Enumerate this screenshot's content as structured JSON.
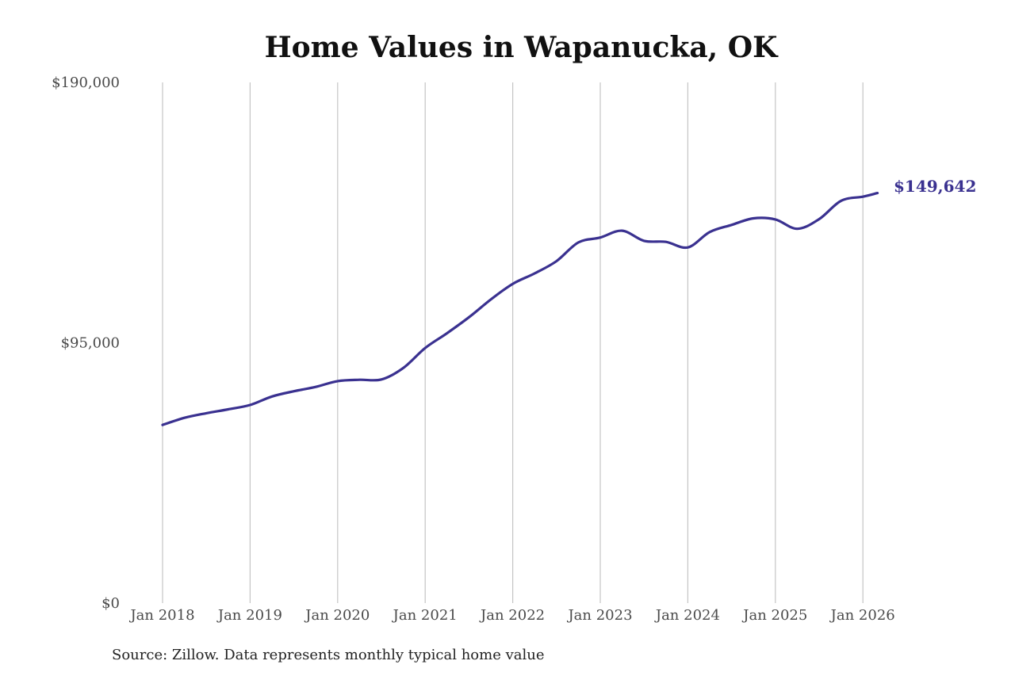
{
  "chart_data": {
    "type": "line",
    "title": "Home Values in Wapanucka, OK",
    "source": "Source: Zillow. Data represents monthly typical home value",
    "xlabel": "",
    "ylabel": "",
    "ylim": [
      0,
      190000
    ],
    "y_ticks": [
      "$0",
      "$95,000",
      "$190,000"
    ],
    "x_ticks": [
      "Jan 2018",
      "Jan 2019",
      "Jan 2020",
      "Jan 2021",
      "Jan 2022",
      "Jan 2023",
      "Jan 2024",
      "Jan 2025",
      "Jan 2026"
    ],
    "end_label": "$149,642",
    "grid": "vertical",
    "line_color": "#3a3190",
    "series": [
      {
        "x": [
          "2018-01",
          "2018-04",
          "2018-07",
          "2018-10",
          "2019-01",
          "2019-04",
          "2019-07",
          "2019-10",
          "2020-01",
          "2020-04",
          "2020-07",
          "2020-10",
          "2021-01",
          "2021-04",
          "2021-07",
          "2021-10",
          "2022-01",
          "2022-04",
          "2022-07",
          "2022-10",
          "2023-01",
          "2023-04",
          "2023-07",
          "2023-10",
          "2024-01",
          "2024-04",
          "2024-07",
          "2024-10",
          "2025-01",
          "2025-04",
          "2025-07",
          "2025-10",
          "2026-01",
          "2026-03"
        ],
        "values": [
          65000,
          67600,
          69300,
          70700,
          72300,
          75400,
          77300,
          78900,
          81000,
          81500,
          81600,
          85800,
          93100,
          98500,
          104300,
          110800,
          116500,
          120300,
          124800,
          131600,
          133400,
          135900,
          132200,
          131800,
          129800,
          135400,
          138000,
          140400,
          140000,
          136600,
          140100,
          146800,
          148300,
          149642
        ]
      }
    ]
  }
}
